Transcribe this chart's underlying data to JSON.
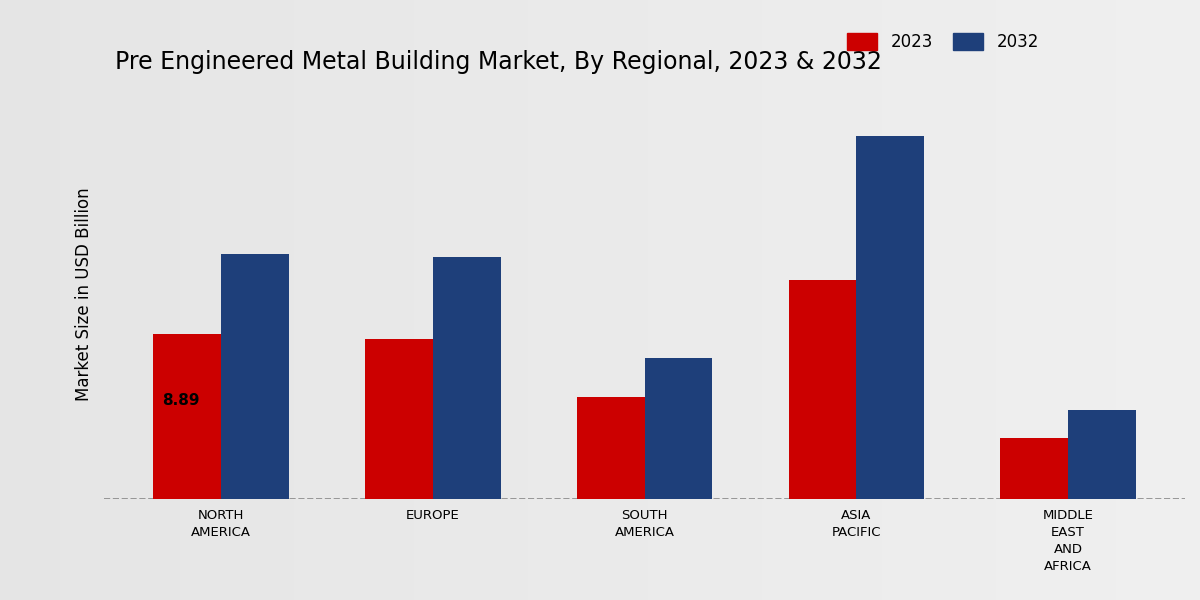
{
  "title": "Pre Engineered Metal Building Market, By Regional, 2023 & 2032",
  "ylabel": "Market Size in USD Billion",
  "categories": [
    "NORTH\nAMERICA",
    "EUROPE",
    "SOUTH\nAMERICA",
    "ASIA\nPACIFIC",
    "MIDDLE\nEAST\nAND\nAFRICA"
  ],
  "values_2023": [
    8.89,
    8.6,
    5.5,
    11.8,
    3.3
  ],
  "values_2032": [
    13.2,
    13.0,
    7.6,
    19.5,
    4.8
  ],
  "color_2023": "#cc0000",
  "color_2032": "#1e3f7a",
  "annotation_value": "8.89",
  "annotation_region_idx": 0,
  "bar_width": 0.32,
  "legend_labels": [
    "2023",
    "2032"
  ],
  "annotation_fontsize": 11,
  "title_fontsize": 17,
  "ylabel_fontsize": 12,
  "tick_fontsize": 9.5,
  "legend_fontsize": 12,
  "ylim_max": 22,
  "bg_left": "#d8d8d8",
  "bg_right": "#f0f0f0"
}
